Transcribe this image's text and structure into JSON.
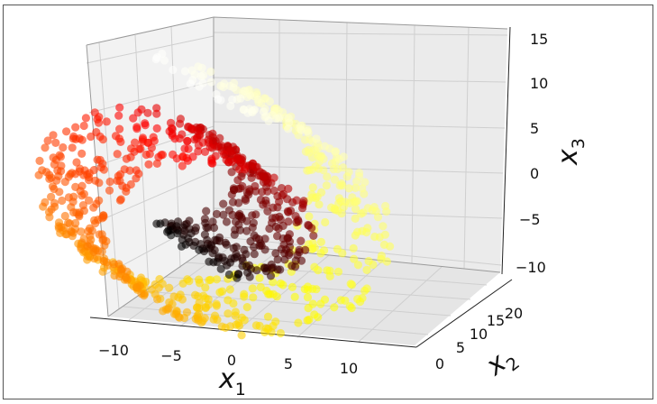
{
  "chart_data": {
    "type": "scatter",
    "projection": "3d",
    "title": "",
    "xlabel": {
      "var": "x",
      "sub": "1"
    },
    "ylabel": {
      "var": "x",
      "sub": "2"
    },
    "zlabel": {
      "var": "x",
      "sub": "3"
    },
    "xlim": [
      -12,
      14
    ],
    "ylim": [
      -2,
      23
    ],
    "zlim": [
      -12,
      16
    ],
    "x_ticks": [
      "−10",
      "−5",
      "0",
      "5",
      "10"
    ],
    "y_ticks": [
      "0",
      "5",
      "10",
      "15",
      "20"
    ],
    "z_ticks": [
      "15",
      "10",
      "5",
      "0",
      "−5",
      "−10"
    ],
    "grid": true,
    "colormap": "hot",
    "marker_alpha": 0.6,
    "dataset": "swiss-roll",
    "series": [
      {
        "t_range": [
          4.71,
          14.14
        ],
        "x_spec": "t*cos(t)",
        "y_spec": "uniform 0..21",
        "z_spec": "t*sin(t)",
        "count": 1000
      }
    ]
  },
  "frame": {
    "border_color": "#555555"
  }
}
